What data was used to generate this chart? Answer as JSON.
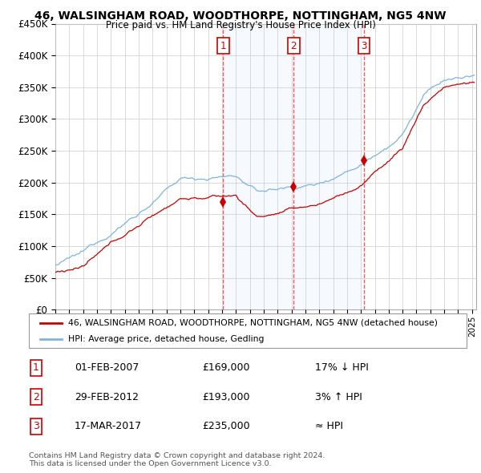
{
  "title": "46, WALSINGHAM ROAD, WOODTHORPE, NOTTINGHAM, NG5 4NW",
  "subtitle": "Price paid vs. HM Land Registry's House Price Index (HPI)",
  "ylabel_ticks": [
    "£0",
    "£50K",
    "£100K",
    "£150K",
    "£200K",
    "£250K",
    "£300K",
    "£350K",
    "£400K",
    "£450K"
  ],
  "ylim": [
    0,
    450000
  ],
  "xlim_start": 1995.0,
  "xlim_end": 2025.3,
  "sale_dates": [
    2007.08,
    2012.16,
    2017.21
  ],
  "sale_prices": [
    169000,
    193000,
    235000
  ],
  "sale_labels": [
    "1",
    "2",
    "3"
  ],
  "hpi_color": "#7fb3e0",
  "price_color": "#cc0000",
  "dashed_color": "#e06060",
  "shade_color": "#ddeeff",
  "legend_label_price": "46, WALSINGHAM ROAD, WOODTHORPE, NOTTINGHAM, NG5 4NW (detached house)",
  "legend_label_hpi": "HPI: Average price, detached house, Gedling",
  "table_rows": [
    {
      "num": "1",
      "date": "01-FEB-2007",
      "price": "£169,000",
      "rel": "17% ↓ HPI"
    },
    {
      "num": "2",
      "date": "29-FEB-2012",
      "price": "£193,000",
      "rel": "3% ↑ HPI"
    },
    {
      "num": "3",
      "date": "17-MAR-2017",
      "price": "£235,000",
      "rel": "≈ HPI"
    }
  ],
  "footer": "Contains HM Land Registry data © Crown copyright and database right 2024.\nThis data is licensed under the Open Government Licence v3.0."
}
